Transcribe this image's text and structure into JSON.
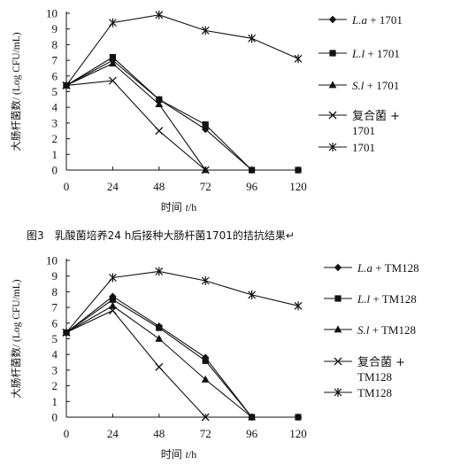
{
  "caption": "图3　乳酸菌培养24 h后接种大肠杆菌1701的拮抗结果↵",
  "chart_data": [
    {
      "type": "line",
      "title": "",
      "xlabel": {
        "prefix": "时间 ",
        "var": "t",
        "suffix": "/h"
      },
      "ylabel": "大肠杆菌数/ (Log CFU/mL)",
      "x": [
        0,
        24,
        48,
        72,
        96,
        120
      ],
      "xlim": [
        0,
        120
      ],
      "ylim": [
        0,
        10
      ],
      "yticks": [
        "0",
        "1",
        "2",
        "3",
        "4",
        "5",
        "6",
        "7",
        "8",
        "9",
        "10"
      ],
      "xticks": [
        "0",
        "24",
        "48",
        "72",
        "96",
        "120"
      ],
      "grid": false,
      "legend_position": "right",
      "series": [
        {
          "marker": "diamond",
          "legend": {
            "italic": "L.a",
            "rest": " + 1701"
          },
          "points": [
            [
              0,
              5.4
            ],
            [
              24,
              7.0
            ],
            [
              48,
              4.5
            ],
            [
              72,
              2.6
            ],
            [
              96,
              0
            ],
            [
              120,
              0
            ]
          ]
        },
        {
          "marker": "square",
          "legend": {
            "italic": "L.l",
            "rest": " + 1701"
          },
          "points": [
            [
              0,
              5.4
            ],
            [
              24,
              7.2
            ],
            [
              48,
              4.5
            ],
            [
              72,
              2.9
            ],
            [
              96,
              0
            ],
            [
              120,
              0
            ]
          ]
        },
        {
          "marker": "triangle",
          "legend": {
            "italic": "S.l",
            "rest": " + 1701"
          },
          "points": [
            [
              0,
              5.4
            ],
            [
              24,
              6.8
            ],
            [
              48,
              4.2
            ],
            [
              72,
              0
            ]
          ]
        },
        {
          "marker": "x",
          "legend": {
            "italic": "",
            "rest": "复合菌 +",
            "line2": "1701"
          },
          "points": [
            [
              0,
              5.4
            ],
            [
              24,
              5.7
            ],
            [
              48,
              2.5
            ],
            [
              72,
              0
            ]
          ]
        },
        {
          "marker": "star",
          "legend": {
            "italic": "",
            "rest": "1701"
          },
          "points": [
            [
              0,
              5.4
            ],
            [
              24,
              9.4
            ],
            [
              48,
              9.9
            ],
            [
              72,
              8.9
            ],
            [
              96,
              8.4
            ],
            [
              120,
              7.1
            ]
          ]
        }
      ]
    },
    {
      "type": "line",
      "title": "",
      "xlabel": {
        "prefix": "时间 ",
        "var": "t",
        "suffix": "/h"
      },
      "ylabel": "大肠杆菌数/ (Log CFU/mL)",
      "x": [
        0,
        24,
        48,
        72,
        96,
        120
      ],
      "xlim": [
        0,
        120
      ],
      "ylim": [
        0,
        10
      ],
      "yticks": [
        "0",
        "1",
        "2",
        "3",
        "4",
        "5",
        "6",
        "7",
        "8",
        "9",
        "10"
      ],
      "xticks": [
        "0",
        "24",
        "48",
        "72",
        "96",
        "120"
      ],
      "grid": false,
      "legend_position": "right",
      "series": [
        {
          "marker": "diamond",
          "legend": {
            "italic": "L.a",
            "rest": " + TM128"
          },
          "points": [
            [
              0,
              5.4
            ],
            [
              24,
              7.7
            ],
            [
              48,
              5.8
            ],
            [
              72,
              3.8
            ],
            [
              96,
              0
            ],
            [
              120,
              0
            ]
          ]
        },
        {
          "marker": "square",
          "legend": {
            "italic": "L.l",
            "rest": " + TM128"
          },
          "points": [
            [
              0,
              5.4
            ],
            [
              24,
              7.5
            ],
            [
              48,
              5.7
            ],
            [
              72,
              3.6
            ],
            [
              96,
              0
            ],
            [
              120,
              0
            ]
          ]
        },
        {
          "marker": "triangle",
          "legend": {
            "italic": "S.l",
            "rest": " + TM128"
          },
          "points": [
            [
              0,
              5.4
            ],
            [
              24,
              7.1
            ],
            [
              48,
              5.0
            ],
            [
              72,
              2.4
            ],
            [
              96,
              0
            ]
          ]
        },
        {
          "marker": "x",
          "legend": {
            "italic": "",
            "rest": "复合菌 +",
            "line2": "TM128"
          },
          "points": [
            [
              0,
              5.4
            ],
            [
              24,
              6.8
            ],
            [
              48,
              3.2
            ],
            [
              72,
              0
            ]
          ]
        },
        {
          "marker": "star",
          "legend": {
            "italic": "",
            "rest": "TM128"
          },
          "points": [
            [
              0,
              5.4
            ],
            [
              24,
              8.9
            ],
            [
              48,
              9.3
            ],
            [
              72,
              8.7
            ],
            [
              96,
              7.8
            ],
            [
              120,
              7.1
            ]
          ]
        }
      ]
    }
  ]
}
